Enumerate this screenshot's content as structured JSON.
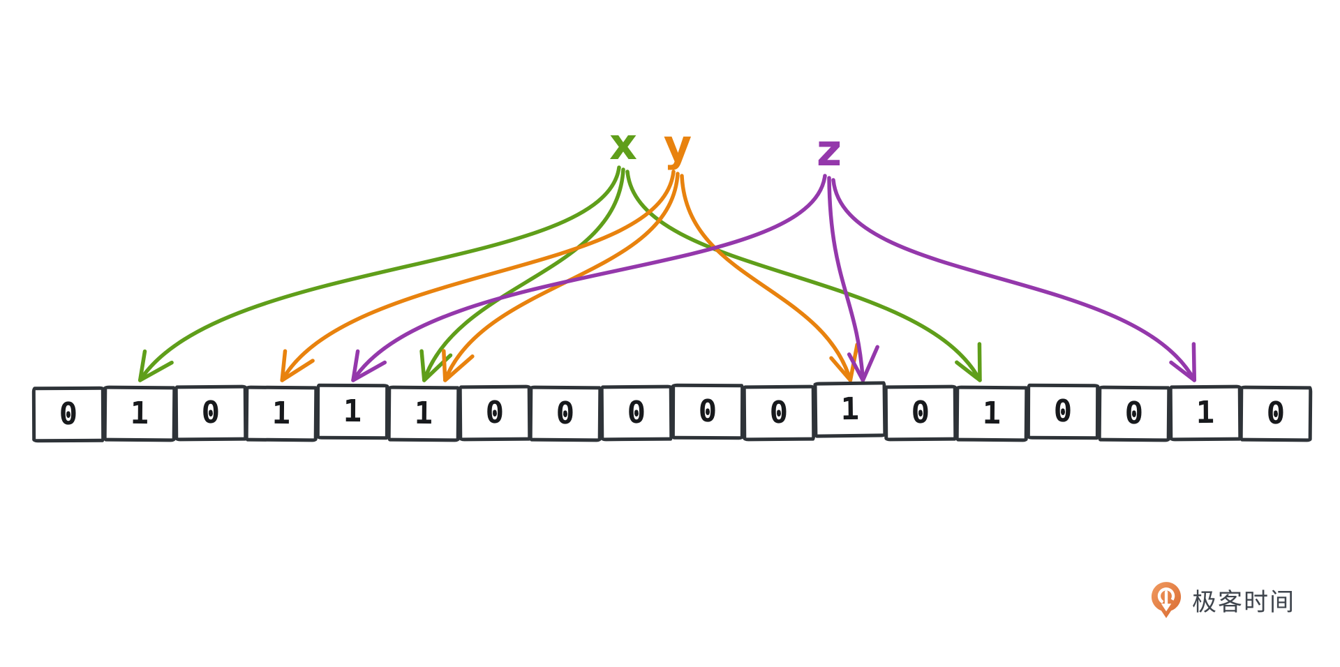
{
  "diagram": {
    "title": "bloom-filter-bit-array",
    "labels": [
      {
        "id": "x",
        "text": "x",
        "color": "#5f9e1a"
      },
      {
        "id": "y",
        "text": "y",
        "color": "#e8820e"
      },
      {
        "id": "z",
        "text": "z",
        "color": "#9438ab"
      }
    ],
    "bits": [
      "0",
      "1",
      "0",
      "1",
      "1",
      "1",
      "0",
      "0",
      "0",
      "0",
      "0",
      "1",
      "0",
      "1",
      "0",
      "0",
      "1",
      "0"
    ],
    "arrows": [
      {
        "from": "x",
        "toIndex": 1
      },
      {
        "from": "x",
        "toIndex": 5
      },
      {
        "from": "x",
        "toIndex": 13
      },
      {
        "from": "y",
        "toIndex": 3
      },
      {
        "from": "y",
        "toIndex": 5
      },
      {
        "from": "y",
        "toIndex": 11
      },
      {
        "from": "z",
        "toIndex": 4
      },
      {
        "from": "z",
        "toIndex": 11
      },
      {
        "from": "z",
        "toIndex": 16
      }
    ],
    "box_border_color": "#2e3338",
    "bit_text_color": "#17191c"
  },
  "footer": {
    "brand": "极客时间",
    "logo_icon": "geektime-pin-logo",
    "logo_color_top": "#f09a60",
    "logo_color_bottom": "#d96a30",
    "text_color": "#3f454d"
  }
}
